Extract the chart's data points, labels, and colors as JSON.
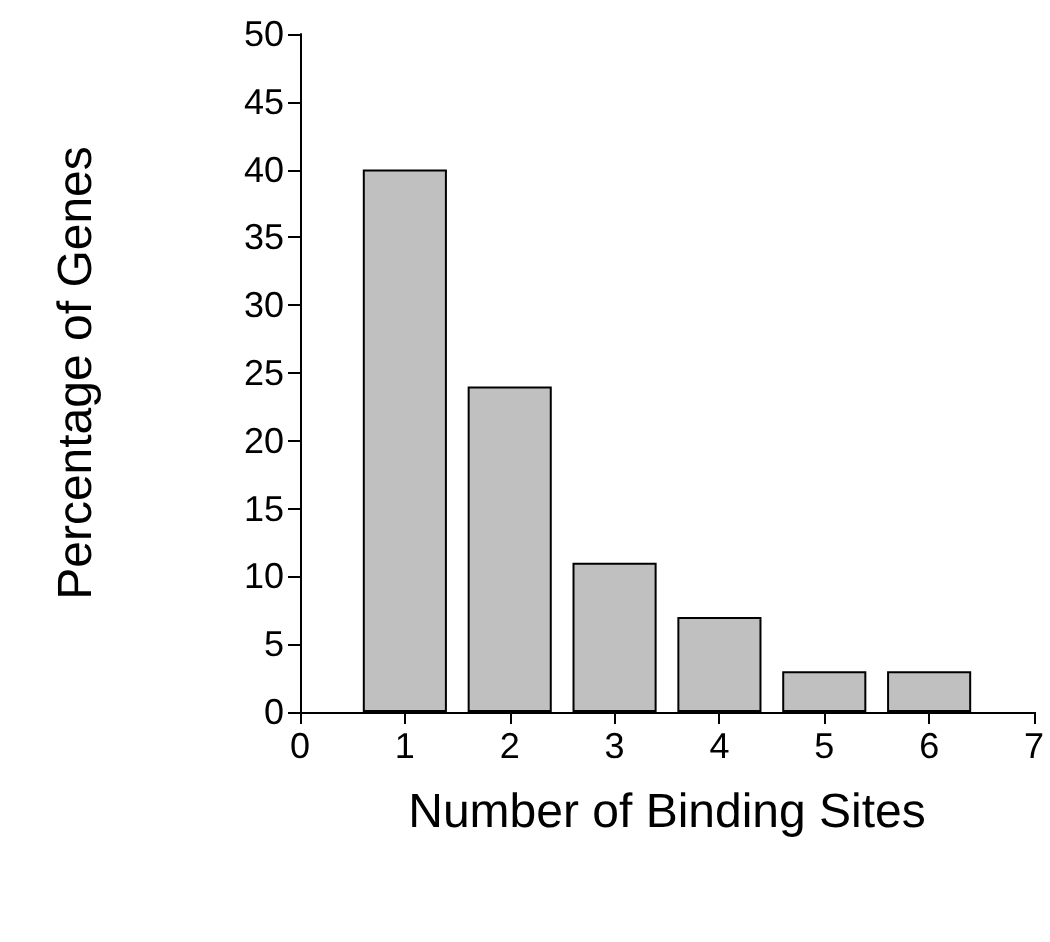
{
  "chart_data": {
    "type": "bar",
    "xlabel": "Number of Binding Sites",
    "ylabel": "Percentage of Genes",
    "x": [
      1,
      2,
      3,
      4,
      5,
      6
    ],
    "values": [
      40,
      24,
      11,
      7,
      3,
      3
    ],
    "color": "#c0c0c0",
    "xlim": [
      0,
      7
    ],
    "xticks": [
      0,
      1,
      2,
      3,
      4,
      5,
      6,
      7
    ],
    "ylim": [
      0,
      50
    ],
    "yticks": [
      0,
      5,
      10,
      15,
      20,
      25,
      30,
      35,
      40,
      45,
      50
    ],
    "grid": false
  }
}
